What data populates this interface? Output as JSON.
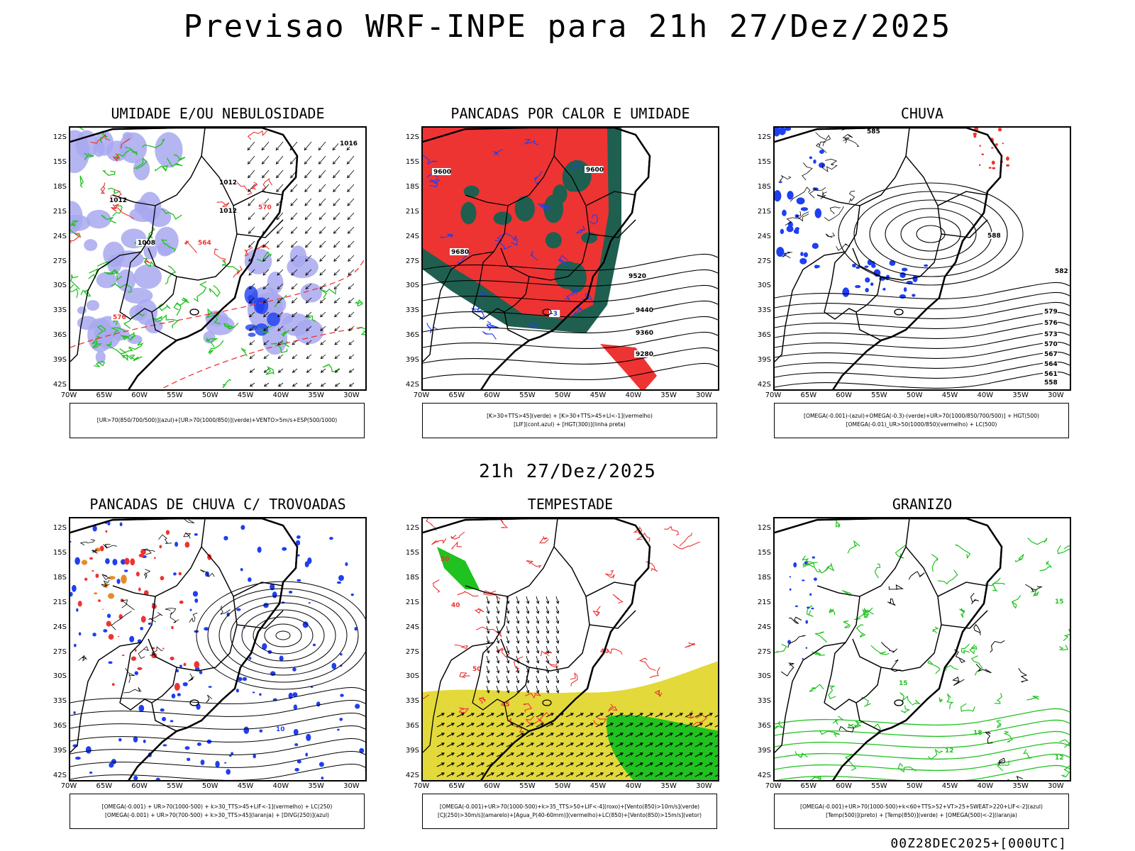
{
  "title": "Previsao WRF-INPE  para 21h 27/Dez/2025",
  "mid_title": "21h 27/Dez/2025",
  "footer": "00Z28DEC2025+[000UTC]",
  "axes": {
    "lat_labels": [
      "12S",
      "15S",
      "18S",
      "21S",
      "24S",
      "27S",
      "30S",
      "33S",
      "36S",
      "39S",
      "42S"
    ],
    "lon_labels": [
      "70W",
      "65W",
      "60W",
      "55W",
      "50W",
      "45W",
      "40W",
      "35W",
      "30W"
    ]
  },
  "colors": {
    "blue": "#1f3ff0",
    "green": "#1fc21f",
    "red": "#ee3333",
    "dark_green": "#1f5f50",
    "yellow": "#e3d93a",
    "light_blue": "#a8a8f0",
    "orange": "#e88a2a"
  },
  "panels": [
    {
      "id": "umidade",
      "title": "UMIDADE E/OU NEBULOSIDADE",
      "legend": [
        "[UR>70(850/700/500)](azul)+[UR>70(1000/850)](verde)+VENTO>5m/s+ESP(500/1000)"
      ],
      "labels": [
        "1012",
        "1016",
        "1012",
        "1012",
        "1008",
        "570",
        "576",
        "564"
      ]
    },
    {
      "id": "pancadas-calor",
      "title": "PANCADAS POR CALOR E UMIDADE",
      "legend": [
        "[K>30+TTS>45](verde) + [K>30+TTS>45+LI<-1](vermelho)",
        "[LIF](cont.azul) + [HGT(300)](linha preta)"
      ],
      "labels": [
        "9600",
        "9680",
        "9600",
        "9520",
        "9440",
        "9360",
        "9280",
        "-3"
      ]
    },
    {
      "id": "chuva",
      "title": "CHUVA",
      "legend": [
        "[OMEGA(-0.001)-(azul)+OMEGA(-0.3)-(verde)+UR>70(1000/850/700/500)] + HGT(500)",
        "[OMEGA(-0.01)_UR>50(1000/850)(vermelho) + LC(500)"
      ],
      "labels": [
        "585",
        "588",
        "582",
        "579",
        "576",
        "573",
        "570",
        "567",
        "564",
        "561",
        "558"
      ]
    },
    {
      "id": "trovoadas",
      "title": "PANCADAS DE CHUVA C/ TROVOADAS",
      "legend": [
        "[OMEGA(-0.001) + UR>70(1000-500) + k>30_TTS>45+LIF<-1](vermelho) + LC(250)",
        "[OMEGA(-0.001) + UR>70(700-500) + k>30_TTS>45](laranja) + [DIVG(250)](azul)"
      ],
      "labels": [
        "10"
      ]
    },
    {
      "id": "tempestade",
      "title": "TEMPESTADE",
      "legend": [
        "[OMEGA(-0.001)+UR>70(1000-500)+k>35_TTS>50+LIF<-4](roxo)+[Vento(850)>10m/s](verde)",
        "[CJ(250)>30m/s](amarelo)+[Agua_P(40-60mm)](vermelho)+LC(850)+[Vento(850)>15m/s](vetor)"
      ],
      "labels": [
        "50",
        "40",
        "50",
        "45",
        "40"
      ]
    },
    {
      "id": "granizo",
      "title": "GRANIZO",
      "legend": [
        "[OMEGA(-0.001)+UR>70(1000-500)+k<60+TTS>52+VT>25+SWEAT>220+LIF<-2](azul)",
        "[Temp(500)](preto) + [Temp(850)](verde) + [OMEGA(500)<-2](laranja)"
      ],
      "labels": [
        "15",
        "12",
        "18",
        "15",
        "12",
        "9"
      ]
    }
  ]
}
